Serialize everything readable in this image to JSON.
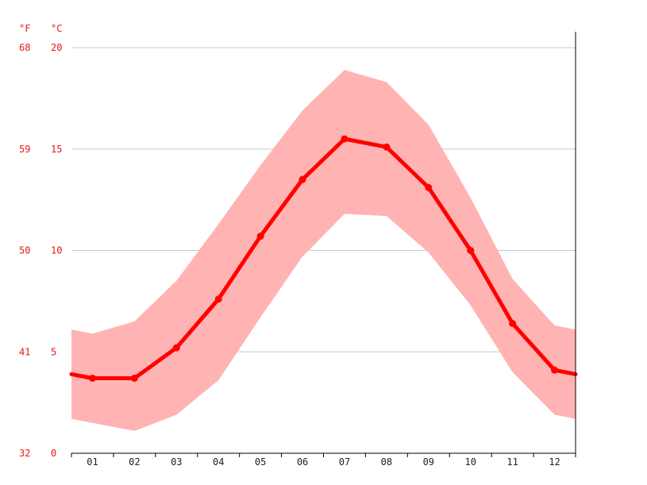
{
  "chart_data": {
    "type": "line",
    "title": "",
    "unit_labels": {
      "fahrenheit": "°F",
      "celsius": "°C"
    },
    "categories": [
      "01",
      "02",
      "03",
      "04",
      "05",
      "06",
      "07",
      "08",
      "09",
      "10",
      "11",
      "12"
    ],
    "ylim": [
      0,
      20
    ],
    "yticks_c": [
      "0",
      "5",
      "10",
      "15",
      "20"
    ],
    "yticks_f": [
      "32",
      "41",
      "50",
      "59",
      "68"
    ],
    "grid": true,
    "band_edge_values": {
      "left": {
        "min": 1.7,
        "max": 6.1
      },
      "right": {
        "min": 1.7,
        "max": 6.1
      }
    },
    "series": [
      {
        "role": "average",
        "values": [
          3.7,
          3.7,
          5.2,
          7.6,
          10.7,
          13.5,
          15.5,
          15.1,
          13.1,
          10.0,
          6.4,
          4.1
        ],
        "edge_left": 3.9,
        "edge_right": 3.9
      },
      {
        "role": "maximum",
        "values": [
          5.9,
          6.5,
          8.5,
          11.3,
          14.2,
          16.9,
          18.9,
          18.3,
          16.2,
          12.6,
          8.6,
          6.3
        ]
      },
      {
        "role": "minimum",
        "values": [
          1.5,
          1.1,
          1.9,
          3.6,
          6.7,
          9.7,
          11.8,
          11.7,
          9.9,
          7.3,
          4.0,
          1.9
        ]
      }
    ],
    "colors": {
      "line": "#ff0000",
      "band": "#ffb3b3",
      "grid": "#c8c8c8",
      "axis": "#000000",
      "y_label": "#e81818",
      "x_label": "#222222"
    }
  }
}
